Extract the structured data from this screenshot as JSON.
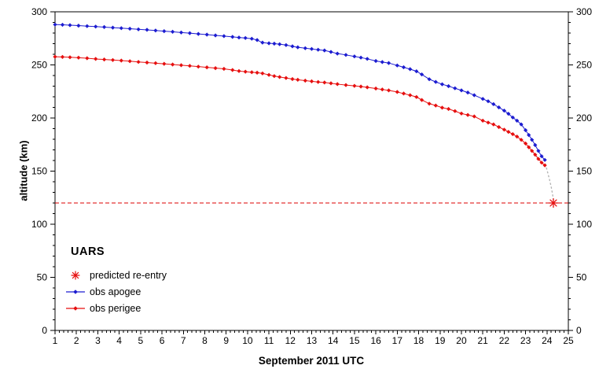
{
  "chart_data": {
    "type": "line",
    "title": "",
    "xlabel": "September 2011 UTC",
    "ylabel": "altitude (km)",
    "xlim": [
      1,
      25
    ],
    "ylim": [
      0,
      300
    ],
    "grid": false,
    "legend_position": "lower-left-inside",
    "legend_title": "UARS",
    "x_ticks": [
      1,
      2,
      3,
      4,
      5,
      6,
      7,
      8,
      9,
      10,
      11,
      12,
      13,
      14,
      15,
      16,
      17,
      18,
      19,
      20,
      21,
      22,
      23,
      24,
      25
    ],
    "y_ticks": [
      0,
      50,
      100,
      150,
      200,
      250,
      300
    ],
    "x_minor_step": 0.2,
    "y_minor_step": 10,
    "x": [
      1.0,
      1.35,
      1.7,
      2.1,
      2.5,
      2.9,
      3.3,
      3.7,
      4.1,
      4.5,
      4.9,
      5.3,
      5.7,
      6.1,
      6.5,
      6.9,
      7.3,
      7.7,
      8.1,
      8.5,
      8.9,
      9.3,
      9.6,
      9.9,
      10.2,
      10.45,
      10.7,
      11.0,
      11.25,
      11.5,
      11.8,
      12.1,
      12.35,
      12.7,
      13.0,
      13.3,
      13.6,
      13.9,
      14.2,
      14.6,
      15.0,
      15.3,
      15.6,
      16.0,
      16.3,
      16.6,
      17.0,
      17.3,
      17.6,
      17.9,
      18.15,
      18.5,
      18.8,
      19.1,
      19.4,
      19.7,
      20.0,
      20.3,
      20.6,
      21.0,
      21.25,
      21.5,
      21.75,
      22.0,
      22.2,
      22.4,
      22.6,
      22.8,
      23.0,
      23.15,
      23.3,
      23.45,
      23.6,
      23.75,
      23.9
    ],
    "series": [
      {
        "name": "obs apogee",
        "color": "#1c1cd0",
        "values": [
          288.0,
          287.8,
          287.4,
          287.0,
          286.5,
          286.1,
          285.6,
          285.1,
          284.6,
          284.1,
          283.5,
          283.0,
          282.4,
          281.8,
          281.2,
          280.5,
          279.9,
          279.2,
          278.5,
          277.8,
          277.1,
          276.4,
          275.8,
          275.3,
          274.7,
          273.4,
          271.0,
          270.4,
          270.0,
          269.5,
          268.7,
          267.5,
          266.6,
          265.7,
          265.0,
          264.3,
          263.6,
          262.2,
          260.7,
          259.4,
          258.0,
          256.9,
          255.7,
          253.7,
          252.7,
          251.8,
          249.5,
          247.8,
          246.0,
          244.0,
          241.0,
          236.5,
          234.0,
          231.8,
          230.0,
          228.0,
          226.0,
          224.0,
          221.5,
          218.0,
          215.8,
          213.0,
          210.0,
          207.0,
          204.0,
          200.5,
          197.5,
          194.0,
          188.5,
          184.0,
          179.5,
          174.5,
          169.0,
          164.0,
          160.5
        ]
      },
      {
        "name": "obs perigee",
        "color": "#e60f0f",
        "values": [
          257.7,
          257.5,
          257.2,
          256.8,
          256.3,
          255.6,
          255.1,
          254.6,
          254.1,
          253.5,
          252.8,
          252.2,
          251.6,
          251.0,
          250.4,
          249.7,
          249.1,
          248.4,
          247.7,
          247.0,
          246.3,
          245.2,
          244.2,
          243.6,
          243.1,
          242.7,
          242.0,
          240.6,
          239.5,
          238.6,
          237.7,
          236.7,
          236.0,
          235.2,
          234.5,
          233.9,
          233.4,
          232.7,
          231.9,
          231.0,
          230.3,
          229.6,
          228.9,
          227.8,
          226.9,
          226.0,
          224.5,
          223.0,
          221.5,
          219.8,
          217.0,
          213.5,
          211.8,
          209.7,
          208.5,
          206.5,
          204.2,
          202.9,
          201.5,
          197.5,
          195.7,
          194.0,
          191.5,
          189.0,
          187.0,
          184.8,
          182.5,
          179.5,
          176.0,
          172.5,
          169.0,
          165.5,
          161.5,
          158.0,
          155.5
        ]
      }
    ],
    "annotations": {
      "reentry_altitude_line": {
        "y": 120,
        "color": "#dd0000",
        "style": "dashed"
      },
      "predicted_reentry_point": {
        "label": "predicted re-entry",
        "x": 24.3,
        "y": 120,
        "marker": "asterisk",
        "color": "#e60f0f"
      },
      "projection_trail": {
        "style": "dotted",
        "color": "#b5b5b5",
        "points": [
          [
            23.93,
            156.5
          ],
          [
            24.03,
            149.0
          ],
          [
            24.12,
            142.0
          ],
          [
            24.2,
            135.0
          ],
          [
            24.26,
            128.5
          ],
          [
            24.3,
            123.0
          ]
        ]
      }
    }
  },
  "legend": {
    "title": "UARS",
    "items": [
      {
        "label": "predicted re-entry",
        "marker": "asterisk",
        "color": "#e60f0f"
      },
      {
        "label": "obs apogee",
        "marker": "line-diamond",
        "color": "#1c1cd0"
      },
      {
        "label": "obs perigee",
        "marker": "line-diamond",
        "color": "#e60f0f"
      }
    ]
  },
  "axes": {
    "x_title": "September 2011 UTC",
    "y_title": "altitude (km)"
  }
}
